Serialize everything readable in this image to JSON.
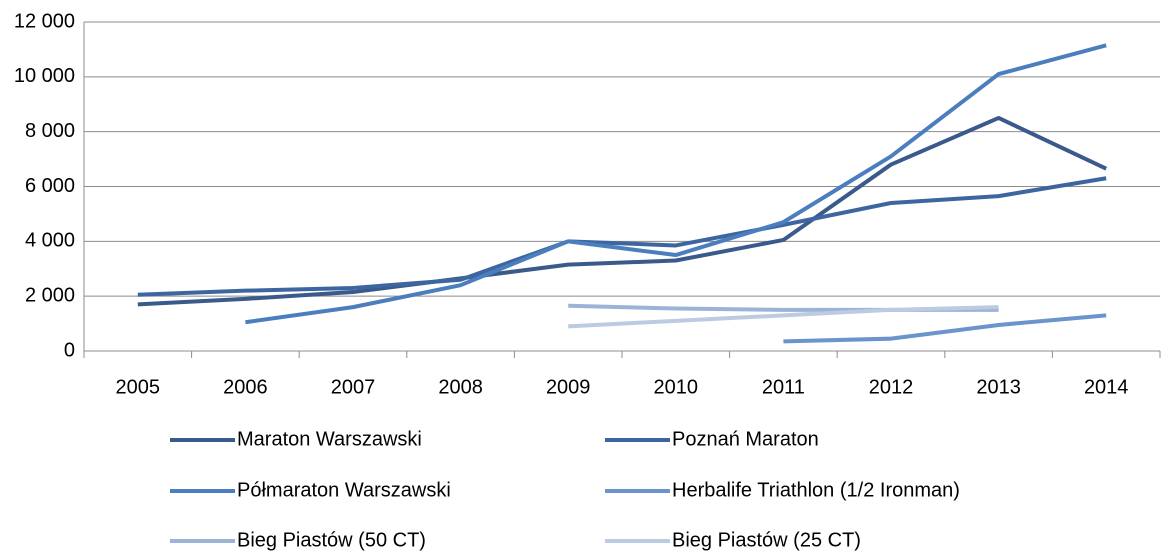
{
  "chart_data": {
    "type": "line",
    "categories": [
      "2005",
      "2006",
      "2007",
      "2008",
      "2009",
      "2010",
      "2011",
      "2012",
      "2013",
      "2014"
    ],
    "series": [
      {
        "name": "Maraton Warszawski",
        "color": "#3a5a8c",
        "values": [
          1700,
          1900,
          2150,
          2650,
          3150,
          3300,
          4050,
          6800,
          8500,
          6650
        ]
      },
      {
        "name": "Poznań Maraton",
        "color": "#3d66a0",
        "values": [
          2050,
          2200,
          2300,
          2600,
          4000,
          3850,
          4600,
          5400,
          5650,
          6300
        ]
      },
      {
        "name": "Półmaraton Warszawski",
        "color": "#4a7ebf",
        "values": [
          null,
          1050,
          1600,
          2400,
          4000,
          3500,
          4700,
          7100,
          10100,
          11150
        ]
      },
      {
        "name": "Herbalife Triathlon (1/2 Ironman)",
        "color": "#6b93cc",
        "values": [
          null,
          null,
          null,
          null,
          null,
          null,
          350,
          450,
          950,
          1300
        ]
      },
      {
        "name": "Bieg Piastów (50 CT)",
        "color": "#9cb3d8",
        "values": [
          null,
          null,
          null,
          null,
          1650,
          1550,
          1500,
          1500,
          1500,
          null
        ]
      },
      {
        "name": "Bieg Piastów (25 CT)",
        "color": "#bccae2",
        "values": [
          null,
          null,
          null,
          null,
          900,
          1100,
          1300,
          1500,
          1600,
          null
        ]
      }
    ],
    "ylim": [
      0,
      12000
    ],
    "yticks": [
      0,
      {
        "value": 2000,
        "label": "2 000"
      },
      {
        "value": 4000,
        "label": "4 000"
      },
      {
        "value": 6000,
        "label": "6 000"
      },
      {
        "value": 8000,
        "label": "8 000"
      },
      {
        "value": 10000,
        "label": "10 000"
      },
      {
        "value": 12000,
        "label": "12 000"
      }
    ],
    "grid": true,
    "legend": "bottom"
  }
}
